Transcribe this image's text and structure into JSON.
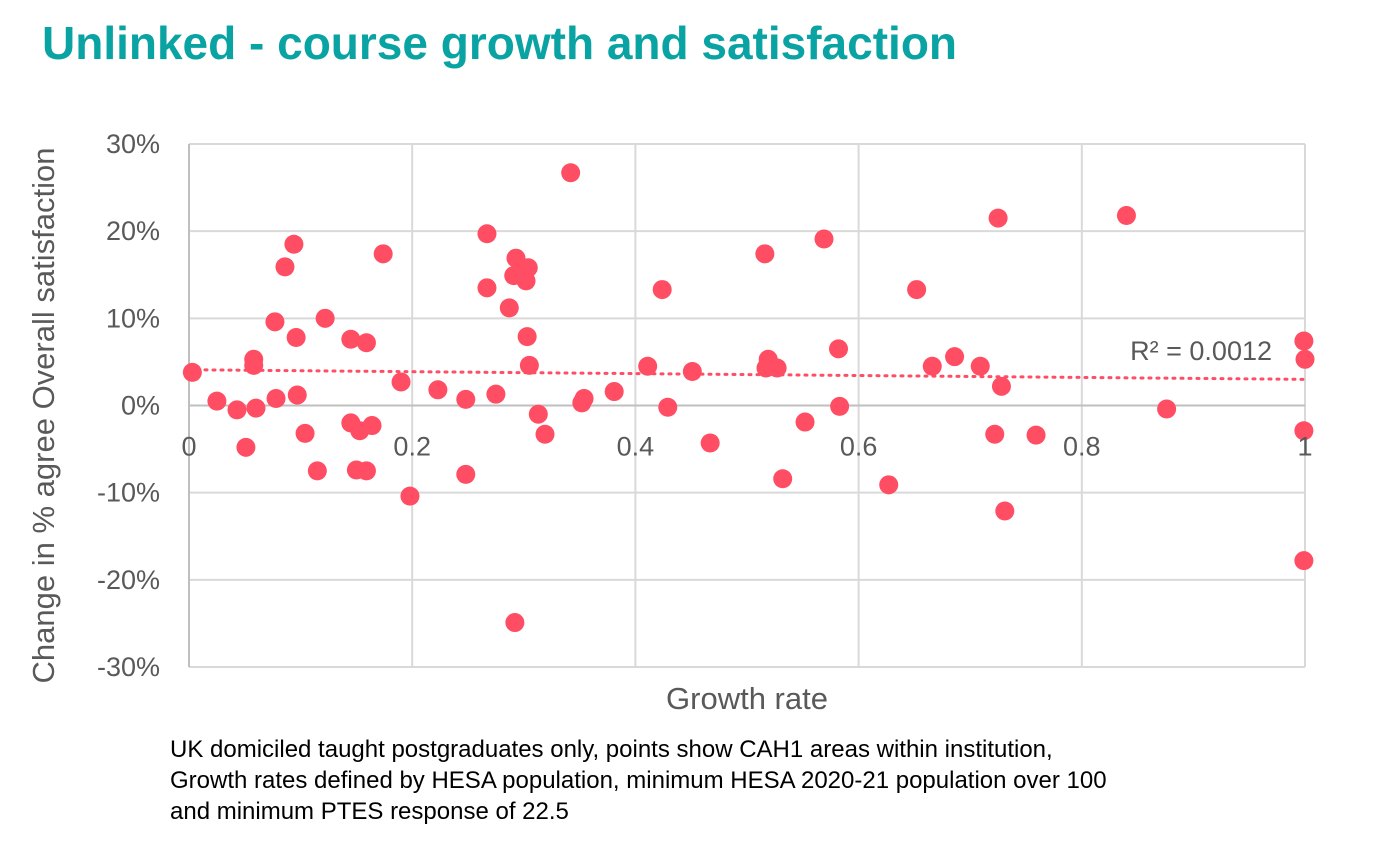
{
  "page": {
    "title": "Unlinked - course growth and satisfaction",
    "title_color": "#0aa3a3",
    "footnote": [
      "UK domiciled taught postgraduates only, points show CAH1 areas within institution,",
      "Growth rates defined by HESA population, minimum HESA 2020-21 population over 100",
      "and minimum PTES response of 22.5"
    ]
  },
  "chart_data": {
    "type": "scatter",
    "title": "Unlinked - course growth and satisfaction",
    "xlabel": "Growth rate",
    "ylabel": "Change in % agree Overall satisfaction",
    "xlim": [
      0,
      1
    ],
    "ylim": [
      -30,
      30
    ],
    "x_ticks": [
      0,
      0.2,
      0.4,
      0.6,
      0.8,
      1
    ],
    "x_tick_labels": [
      "0",
      "0.2",
      "0.4",
      "0.6",
      "0.8",
      "1"
    ],
    "y_ticks": [
      30,
      20,
      10,
      0,
      -10,
      -20,
      -30
    ],
    "y_tick_labels": [
      "30%",
      "20%",
      "10%",
      "0%",
      "-10%",
      "-20%",
      "-30%"
    ],
    "grid": true,
    "point_color": "#ff4d63",
    "trendline": {
      "style": "dotted",
      "x": [
        0,
        1
      ],
      "y": [
        4.1,
        3.0
      ],
      "label": "R² = 0.0012"
    },
    "series": [
      {
        "points": [
          [
            0.003,
            3.8
          ],
          [
            0.025,
            0.5
          ],
          [
            0.043,
            -0.5
          ],
          [
            0.051,
            -4.8
          ],
          [
            0.058,
            5.3
          ],
          [
            0.058,
            4.6
          ],
          [
            0.06,
            -0.3
          ],
          [
            0.077,
            9.6
          ],
          [
            0.078,
            0.8
          ],
          [
            0.086,
            15.9
          ],
          [
            0.094,
            18.5
          ],
          [
            0.096,
            7.8
          ],
          [
            0.097,
            1.2
          ],
          [
            0.104,
            -3.2
          ],
          [
            0.115,
            -7.5
          ],
          [
            0.122,
            10.0
          ],
          [
            0.145,
            7.6
          ],
          [
            0.145,
            -2.0
          ],
          [
            0.15,
            -7.4
          ],
          [
            0.153,
            -2.9
          ],
          [
            0.159,
            7.2
          ],
          [
            0.159,
            -7.5
          ],
          [
            0.164,
            -2.3
          ],
          [
            0.174,
            17.4
          ],
          [
            0.19,
            2.7
          ],
          [
            0.198,
            -10.4
          ],
          [
            0.223,
            1.8
          ],
          [
            0.248,
            0.7
          ],
          [
            0.248,
            -7.9
          ],
          [
            0.267,
            19.7
          ],
          [
            0.267,
            13.5
          ],
          [
            0.275,
            1.3
          ],
          [
            0.287,
            11.2
          ],
          [
            0.291,
            14.9
          ],
          [
            0.292,
            -24.9
          ],
          [
            0.293,
            16.9
          ],
          [
            0.3,
            15.2
          ],
          [
            0.302,
            14.3
          ],
          [
            0.303,
            7.9
          ],
          [
            0.304,
            15.8
          ],
          [
            0.305,
            4.6
          ],
          [
            0.313,
            -1.0
          ],
          [
            0.319,
            -3.3
          ],
          [
            0.342,
            26.7
          ],
          [
            0.352,
            0.3
          ],
          [
            0.354,
            0.8
          ],
          [
            0.381,
            1.6
          ],
          [
            0.411,
            4.5
          ],
          [
            0.424,
            13.3
          ],
          [
            0.429,
            -0.2
          ],
          [
            0.451,
            3.9
          ],
          [
            0.467,
            -4.3
          ],
          [
            0.516,
            17.4
          ],
          [
            0.517,
            4.3
          ],
          [
            0.519,
            5.3
          ],
          [
            0.527,
            4.3
          ],
          [
            0.532,
            -8.4
          ],
          [
            0.552,
            -1.9
          ],
          [
            0.569,
            19.1
          ],
          [
            0.582,
            6.5
          ],
          [
            0.583,
            -0.1
          ],
          [
            0.627,
            -9.1
          ],
          [
            0.652,
            13.3
          ],
          [
            0.666,
            4.5
          ],
          [
            0.686,
            5.6
          ],
          [
            0.709,
            4.5
          ],
          [
            0.722,
            -3.3
          ],
          [
            0.725,
            21.5
          ],
          [
            0.728,
            2.2
          ],
          [
            0.731,
            -12.1
          ],
          [
            0.759,
            -3.4
          ],
          [
            0.84,
            21.8
          ],
          [
            0.876,
            -0.4
          ],
          [
            0.999,
            7.4
          ],
          [
            1.0,
            5.3
          ],
          [
            0.999,
            -2.9
          ],
          [
            0.999,
            -17.8
          ]
        ]
      }
    ]
  }
}
